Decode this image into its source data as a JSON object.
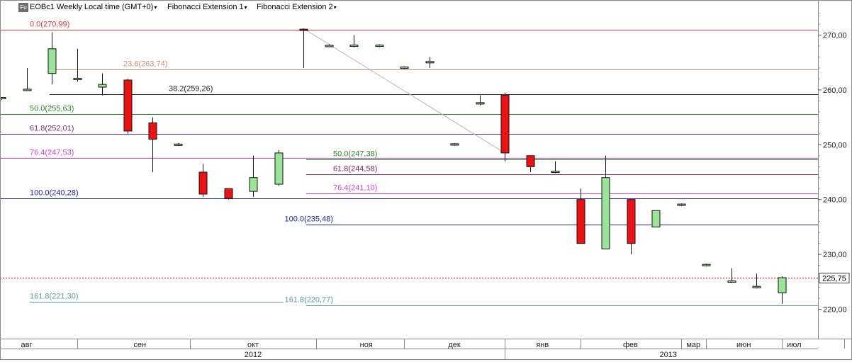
{
  "header": {
    "symbol_badge": "Fu",
    "instrument_title": "EOBc1 Weekly Local time (GMT+0)",
    "indicator_1": "Fibonacci Extension 1",
    "indicator_2": "Fibonacci Extension 2",
    "caret_glyph": "▾"
  },
  "chart_data": {
    "type": "candlestick",
    "title": "EOBc1 Weekly Local time (GMT+0)",
    "ylim": [
      213,
      277
    ],
    "y_ticks": [
      "220,00",
      "230,00",
      "240,00",
      "250,00",
      "260,00",
      "270,00"
    ],
    "y_tick_values": [
      220,
      230,
      240,
      250,
      260,
      270
    ],
    "current_price": 225.75,
    "current_price_label": "225,75",
    "colors": {
      "up": "#99e699",
      "down": "#ee1111",
      "last_price_line": "#dd2222"
    },
    "month_labels": [
      {
        "label": "авг",
        "slot": 1.0
      },
      {
        "label": "сен",
        "slot": 5.5
      },
      {
        "label": "окт",
        "slot": 10.0
      },
      {
        "label": "ноя",
        "slot": 14.5
      },
      {
        "label": "дек",
        "slot": 18.0
      },
      {
        "label": "янв",
        "slot": 21.5
      },
      {
        "label": "фев",
        "slot": 25.0
      },
      {
        "label": "мар",
        "slot": 27.5
      },
      {
        "label": "июн",
        "slot": 29.5
      },
      {
        "label": "июл",
        "slot": 31.5
      }
    ],
    "month_dividers": [
      3,
      7.5,
      12.5,
      16,
      20,
      23,
      27,
      28,
      31,
      33.5
    ],
    "year_labels": [
      {
        "label": "2012",
        "slot": 10.0
      },
      {
        "label": "2013",
        "slot": 26.5
      }
    ],
    "year_divider": 20,
    "candles": [
      {
        "slot": 0,
        "o": 258.5,
        "h": 258.7,
        "l": 258.2,
        "c": 258.5
      },
      {
        "slot": 1,
        "o": 260.0,
        "h": 264.0,
        "l": 259.8,
        "c": 260.0
      },
      {
        "slot": 2,
        "o": 263.0,
        "h": 270.5,
        "l": 261.0,
        "c": 267.5
      },
      {
        "slot": 3,
        "o": 262.0,
        "h": 267.5,
        "l": 261.5,
        "c": 262.0
      },
      {
        "slot": 4,
        "o": 260.5,
        "h": 263.0,
        "l": 259.0,
        "c": 261.0
      },
      {
        "slot": 5,
        "o": 261.8,
        "h": 262.0,
        "l": 252.0,
        "c": 252.5
      },
      {
        "slot": 6,
        "o": 254.0,
        "h": 255.0,
        "l": 245.0,
        "c": 251.0
      },
      {
        "slot": 7,
        "o": 250.0,
        "h": 250.3,
        "l": 249.8,
        "c": 250.0
      },
      {
        "slot": 8,
        "o": 245.0,
        "h": 246.5,
        "l": 240.5,
        "c": 241.0
      },
      {
        "slot": 9,
        "o": 242.0,
        "h": 242.0,
        "l": 240.0,
        "c": 240.2
      },
      {
        "slot": 10,
        "o": 241.5,
        "h": 248.0,
        "l": 240.5,
        "c": 244.0
      },
      {
        "slot": 11,
        "o": 242.8,
        "h": 249.0,
        "l": 242.5,
        "c": 248.5
      },
      {
        "slot": 12,
        "o": 271.0,
        "h": 271.2,
        "l": 264.0,
        "c": 270.9
      },
      {
        "slot": 13,
        "o": 268.0,
        "h": 268.3,
        "l": 267.8,
        "c": 268.0
      },
      {
        "slot": 14,
        "o": 268.0,
        "h": 270.0,
        "l": 267.8,
        "c": 268.1
      },
      {
        "slot": 15,
        "o": 268.0,
        "h": 268.3,
        "l": 267.8,
        "c": 268.1
      },
      {
        "slot": 16,
        "o": 264.0,
        "h": 264.3,
        "l": 263.8,
        "c": 264.1
      },
      {
        "slot": 17,
        "o": 265.0,
        "h": 266.0,
        "l": 264.0,
        "c": 265.1
      },
      {
        "slot": 18,
        "o": 250.0,
        "h": 250.3,
        "l": 249.8,
        "c": 250.1
      },
      {
        "slot": 19,
        "o": 257.5,
        "h": 259.0,
        "l": 257.2,
        "c": 257.6
      },
      {
        "slot": 20,
        "o": 259.0,
        "h": 259.5,
        "l": 247.0,
        "c": 248.5
      },
      {
        "slot": 21,
        "o": 248.0,
        "h": 248.0,
        "l": 245.0,
        "c": 246.0
      },
      {
        "slot": 22,
        "o": 245.0,
        "h": 247.0,
        "l": 244.8,
        "c": 245.1
      },
      {
        "slot": 23,
        "o": 240.0,
        "h": 242.0,
        "l": 232.0,
        "c": 232.0
      },
      {
        "slot": 24,
        "o": 231.0,
        "h": 248.0,
        "l": 231.0,
        "c": 244.0
      },
      {
        "slot": 25,
        "o": 240.0,
        "h": 240.0,
        "l": 230.0,
        "c": 232.0
      },
      {
        "slot": 26,
        "o": 235.0,
        "h": 238.0,
        "l": 235.0,
        "c": 238.0
      },
      {
        "slot": 27,
        "o": 239.0,
        "h": 239.3,
        "l": 238.8,
        "c": 239.1
      },
      {
        "slot": 28,
        "o": 228.0,
        "h": 228.3,
        "l": 227.8,
        "c": 228.1
      },
      {
        "slot": 29,
        "o": 225.0,
        "h": 227.5,
        "l": 224.8,
        "c": 225.1
      },
      {
        "slot": 30,
        "o": 224.0,
        "h": 226.5,
        "l": 223.8,
        "c": 224.1
      },
      {
        "slot": 31,
        "o": 223.0,
        "h": 226.0,
        "l": 221.0,
        "c": 225.75
      }
    ],
    "fib_extension_1": {
      "name": "Fibonacci Extension 1",
      "levels": [
        {
          "label": "0.0(270,99)",
          "value": 270.99,
          "color": "#e33a3a"
        },
        {
          "label": "23.6(263,74)",
          "value": 263.74,
          "color": "#d08a7a"
        },
        {
          "label": "38.2(259,26)",
          "value": 259.26,
          "color": "#222222"
        },
        {
          "label": "50.0(255,63)",
          "value": 255.63,
          "color": "#2a8a2a"
        },
        {
          "label": "61.8(252,01)",
          "value": 252.01,
          "color": "#8a2a6a"
        },
        {
          "label": "76.4(247,53)",
          "value": 247.53,
          "color": "#e040e0"
        },
        {
          "label": "100.0(240,28)",
          "value": 240.28,
          "color": "#2020c0"
        },
        {
          "label": "161.8(221,30)",
          "value": 221.3,
          "color": "#5aa0a0"
        }
      ]
    },
    "fib_extension_2": {
      "name": "Fibonacci Extension 2",
      "levels": [
        {
          "label": "50.0(247,38)",
          "value": 247.38,
          "color": "#2a8a2a"
        },
        {
          "label": "61.8(244,58)",
          "value": 244.58,
          "color": "#8a2a6a"
        },
        {
          "label": "76.4(241,10)",
          "value": 241.1,
          "color": "#e040e0"
        },
        {
          "label": "100.0(235,48)",
          "value": 235.48,
          "color": "#2020c0"
        },
        {
          "label": "161.8(220,77)",
          "value": 220.77,
          "color": "#5aa0a0"
        }
      ]
    },
    "trend_line": {
      "from": {
        "slot": 12,
        "value": 271.2
      },
      "to": {
        "slot": 20,
        "value": 248.5
      },
      "color": "#b8b8b8"
    }
  }
}
